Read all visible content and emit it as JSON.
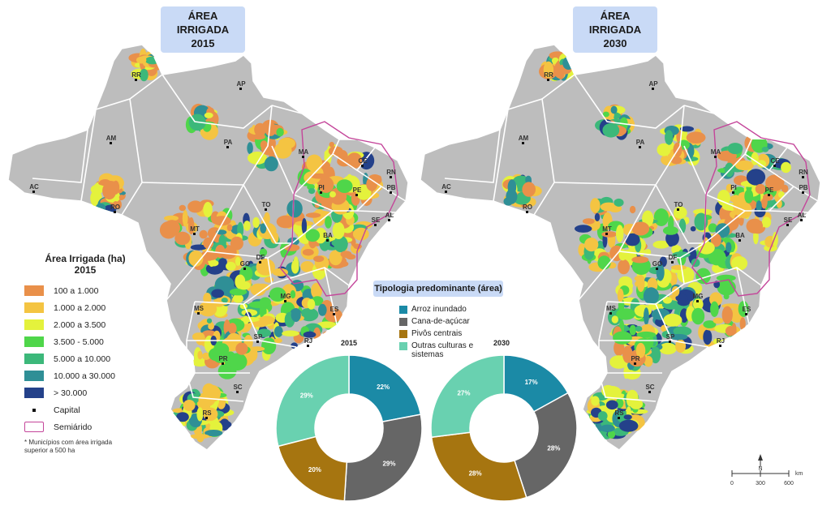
{
  "titles": {
    "map_2015": {
      "line1": "ÁREA IRRIGADA",
      "line2": "2015"
    },
    "map_2030": {
      "line1": "ÁREA IRRIGADA",
      "line2": "2030"
    }
  },
  "states": [
    "RR",
    "AP",
    "AM",
    "PA",
    "MA",
    "CE",
    "RN",
    "PB",
    "PE",
    "AL",
    "SE",
    "PI",
    "AC",
    "RO",
    "TO",
    "BA",
    "MT",
    "GO",
    "DF",
    "MS",
    "MG",
    "ES",
    "SP",
    "RJ",
    "PR",
    "SC",
    "RS"
  ],
  "legend": {
    "title_line1": "Área Irrigada (ha)",
    "title_line2": "2015",
    "items": [
      {
        "label": "100 a 1.000",
        "color": "#e9904a"
      },
      {
        "label": "1.000 a 2.000",
        "color": "#f4c442"
      },
      {
        "label": "2.000 a 3.500",
        "color": "#e4f23c"
      },
      {
        "label": "3.500 - 5.000",
        "color": "#4fd64a"
      },
      {
        "label": "5.000 a 10.000",
        "color": "#3cb87a"
      },
      {
        "label": "10.000 a 30.000",
        "color": "#2f8f96"
      },
      {
        "label": "> 30.000",
        "color": "#24418a"
      }
    ],
    "capital_label": "Capital",
    "semiarido_label": "Semiárido",
    "note": "* Municípios com área irrigada superior a 500 ha"
  },
  "tipologia": {
    "title": "Tipologia predominante (área)",
    "items": [
      {
        "label": "Arroz inundado",
        "color": "#1b8aa6"
      },
      {
        "label": "Cana-de-açúcar",
        "color": "#666666"
      },
      {
        "label": "Pivôs centrais",
        "color": "#a67510"
      },
      {
        "label": "Outras culturas e sistemas",
        "color": "#69d1b0"
      }
    ]
  },
  "donuts": [
    {
      "year": "2015",
      "values": [
        22,
        29,
        20,
        29
      ],
      "labels": [
        "22%",
        "29%",
        "20%",
        "29%"
      ]
    },
    {
      "year": "2030",
      "values": [
        17,
        28,
        28,
        27
      ],
      "labels": [
        "17%",
        "28%",
        "28%",
        "27%"
      ]
    }
  ],
  "scale": {
    "north": "N",
    "unit": "km",
    "ticks": [
      "0",
      "300",
      "600"
    ]
  },
  "colors": {
    "land": "#bdbdbd",
    "border": "#ffffff",
    "semiarido": "#c4459a"
  }
}
